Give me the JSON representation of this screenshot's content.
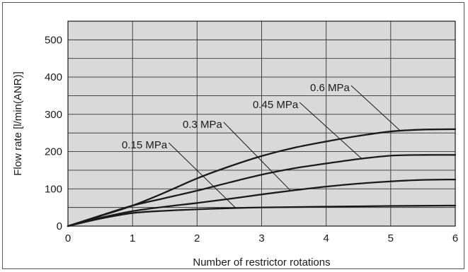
{
  "chart_data": {
    "type": "line",
    "xlabel": "Number of restrictor rotations",
    "ylabel": "Flow rate [l/min(ANR)]",
    "xlim": [
      0,
      6
    ],
    "ylim": [
      0,
      550
    ],
    "x_ticks": [
      "0",
      "1",
      "2",
      "3",
      "4",
      "5",
      "6"
    ],
    "y_ticks": [
      "0",
      "100",
      "200",
      "300",
      "400",
      "500"
    ],
    "grid": true,
    "background_color": "#d9d9d9",
    "line_color": "#1a1a1a",
    "series": [
      {
        "name": "0.15 MPa",
        "x": [
          0,
          0.5,
          1,
          1.5,
          2,
          2.5,
          3,
          4,
          5,
          6
        ],
        "y": [
          0,
          20,
          35,
          41,
          45,
          48,
          50,
          52,
          54,
          55
        ]
      },
      {
        "name": "0.3 MPa",
        "x": [
          0,
          0.5,
          1,
          1.5,
          2,
          2.5,
          3,
          3.5,
          4,
          4.5,
          5,
          5.5,
          6
        ],
        "y": [
          0,
          22,
          40,
          52,
          62,
          73,
          85,
          96,
          106,
          114,
          120,
          124,
          125
        ]
      },
      {
        "name": "0.45 MPa",
        "x": [
          0,
          0.5,
          1,
          1.5,
          2,
          2.5,
          3,
          3.5,
          4,
          4.5,
          5,
          5.5,
          6
        ],
        "y": [
          0,
          28,
          55,
          75,
          95,
          117,
          138,
          155,
          168,
          180,
          189,
          191,
          191
        ]
      },
      {
        "name": "0.6 MPa",
        "x": [
          0,
          0.5,
          1,
          1.5,
          2,
          2.5,
          3,
          3.5,
          4,
          4.5,
          5,
          5.5,
          6
        ],
        "y": [
          0,
          27,
          55,
          90,
          128,
          160,
          188,
          210,
          227,
          242,
          254,
          259,
          260
        ]
      }
    ],
    "annotations": [
      {
        "text": "0.15 MPa",
        "series": "0.15 MPa",
        "points_to_x": 2.6
      },
      {
        "text": "0.3 MPa",
        "series": "0.3 MPa",
        "points_to_x": 3.45
      },
      {
        "text": "0.45 MPa",
        "series": "0.45 MPa",
        "points_to_x": 4.55
      },
      {
        "text": "0.6 MPa",
        "series": "0.6 MPa",
        "points_to_x": 5.15
      }
    ]
  }
}
